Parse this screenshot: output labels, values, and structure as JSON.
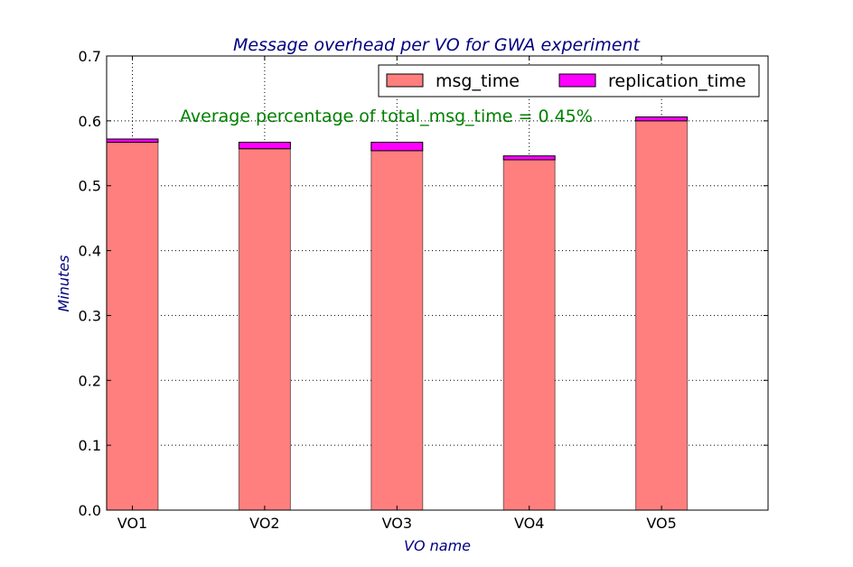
{
  "chart_data": {
    "type": "bar",
    "stacked": true,
    "title": "Message overhead per VO for GWA experiment",
    "xlabel": "VO name",
    "ylabel": "Minutes",
    "categories": [
      "VO1",
      "VO2",
      "VO3",
      "VO4",
      "VO5"
    ],
    "series": [
      {
        "name": "msg_time",
        "values": [
          0.567,
          0.557,
          0.554,
          0.54,
          0.6
        ],
        "color": "#ff7f7f"
      },
      {
        "name": "replication_time",
        "values": [
          0.005,
          0.01,
          0.013,
          0.006,
          0.006
        ],
        "color": "#ff00ff"
      }
    ],
    "ylim": [
      0,
      0.7
    ],
    "yticks": [
      "0.0",
      "0.1",
      "0.2",
      "0.3",
      "0.4",
      "0.5",
      "0.6",
      "0.7"
    ],
    "grid": true,
    "legend_position": "top-right",
    "annotation": "Average percentage of total_msg_time = 0.45%"
  }
}
